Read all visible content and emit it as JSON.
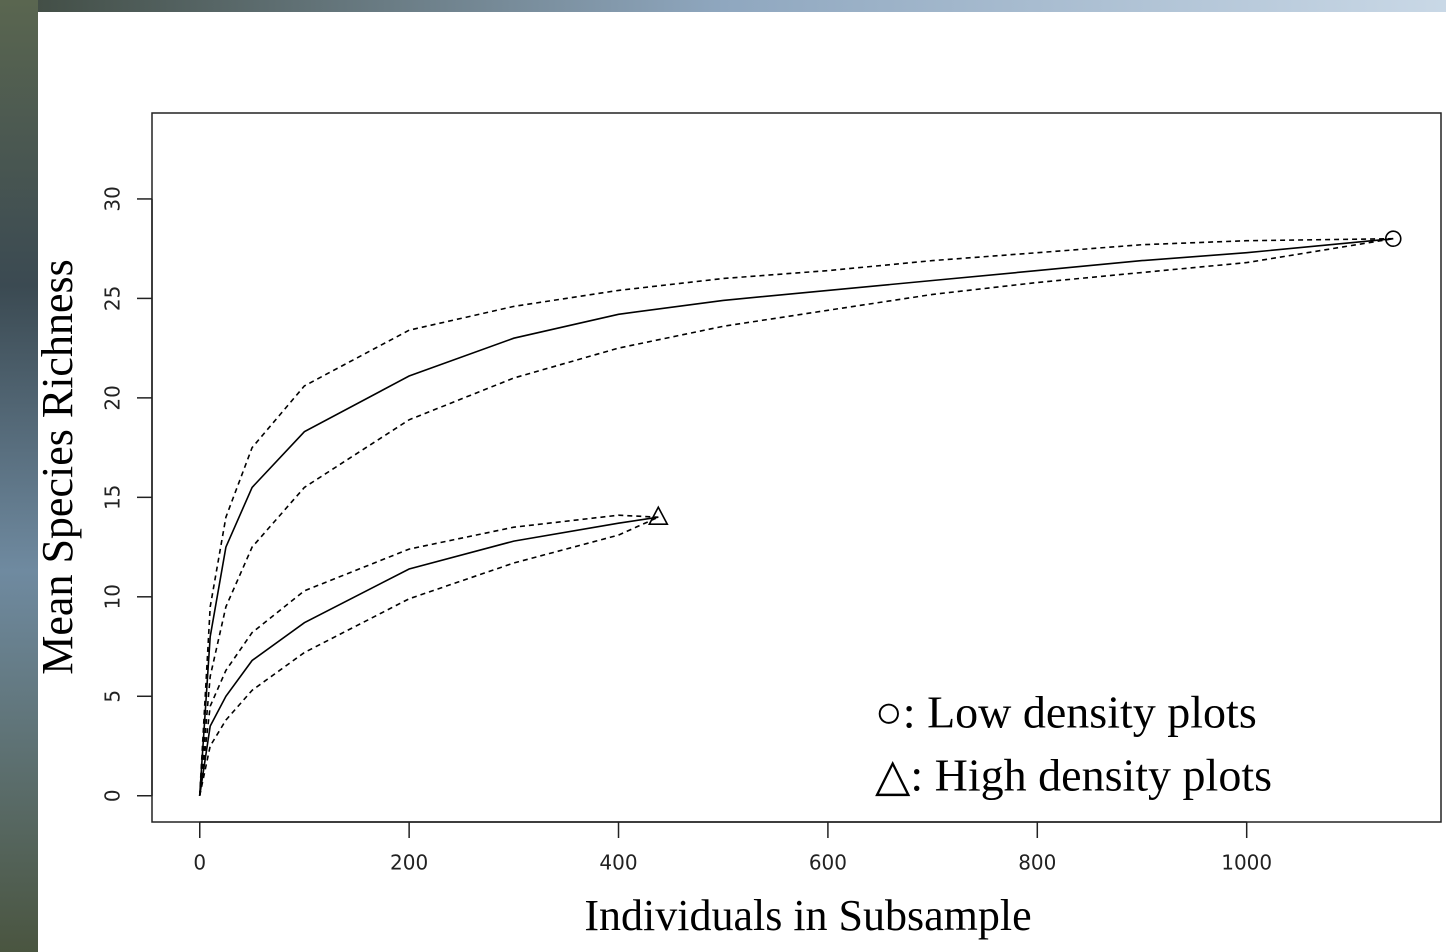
{
  "chart_data": {
    "type": "line",
    "x_label": "Individuals in Subsample",
    "y_label": "Mean Species Richness",
    "xlim": [
      -45.6,
      1185.6
    ],
    "xticks": [
      0,
      200,
      400,
      600,
      800,
      1000
    ],
    "ylim": [
      -1.32,
      34.32
    ],
    "yticks": [
      0,
      5,
      10,
      15,
      20,
      25,
      30
    ],
    "grid": false,
    "legend": [
      "○: Low density plots",
      "△: High density plots"
    ],
    "series": [
      {
        "color": "#000000",
        "style": "solid",
        "marker": "circle",
        "x": [
          0,
          10,
          25,
          50,
          100,
          200,
          300,
          400,
          500,
          600,
          700,
          800,
          900,
          1000,
          1140
        ],
        "values": [
          0,
          8,
          12.5,
          15.5,
          18.3,
          21.1,
          23,
          24.2,
          24.9,
          25.4,
          25.9,
          26.4,
          26.9,
          27.3,
          28
        ]
      },
      {
        "color": "#000000",
        "style": "dashed",
        "x": [
          0,
          10,
          25,
          50,
          100,
          200,
          300,
          400,
          500,
          600,
          700,
          800,
          900,
          1000,
          1140
        ],
        "values": [
          0,
          9.5,
          14,
          17.5,
          20.6,
          23.4,
          24.6,
          25.4,
          26,
          26.4,
          26.9,
          27.3,
          27.7,
          27.9,
          28
        ]
      },
      {
        "color": "#000000",
        "style": "dashed",
        "x": [
          0,
          10,
          25,
          50,
          100,
          200,
          300,
          400,
          500,
          600,
          700,
          800,
          900,
          1000,
          1140
        ],
        "values": [
          0,
          6,
          9.5,
          12.5,
          15.5,
          18.9,
          21,
          22.5,
          23.6,
          24.4,
          25.2,
          25.8,
          26.3,
          26.8,
          28
        ]
      },
      {
        "color": "#000000",
        "style": "solid",
        "marker": "triangle",
        "x": [
          0,
          10,
          25,
          50,
          100,
          200,
          300,
          400,
          438
        ],
        "values": [
          0,
          3.5,
          5,
          6.8,
          8.7,
          11.4,
          12.8,
          13.7,
          14
        ]
      },
      {
        "color": "#000000",
        "style": "dashed",
        "x": [
          0,
          10,
          25,
          50,
          100,
          200,
          300,
          400,
          438
        ],
        "values": [
          0,
          4.5,
          6.3,
          8.2,
          10.3,
          12.4,
          13.5,
          14.1,
          14
        ]
      },
      {
        "color": "#000000",
        "style": "dashed",
        "x": [
          0,
          10,
          25,
          50,
          100,
          200,
          300,
          400,
          438
        ],
        "values": [
          0,
          2.5,
          3.8,
          5.3,
          7.2,
          9.9,
          11.7,
          13.1,
          14
        ]
      }
    ]
  }
}
